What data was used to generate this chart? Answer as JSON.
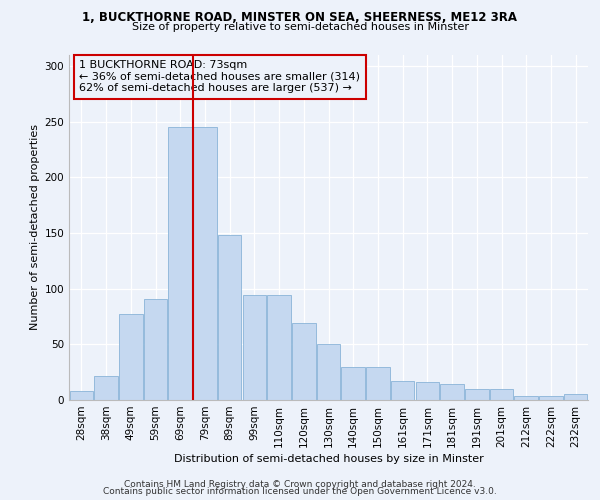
{
  "title1": "1, BUCKTHORNE ROAD, MINSTER ON SEA, SHEERNESS, ME12 3RA",
  "title2": "Size of property relative to semi-detached houses in Minster",
  "xlabel": "Distribution of semi-detached houses by size in Minster",
  "ylabel": "Number of semi-detached properties",
  "footer1": "Contains HM Land Registry data © Crown copyright and database right 2024.",
  "footer2": "Contains public sector information licensed under the Open Government Licence v3.0.",
  "annotation_line1": "1 BUCKTHORNE ROAD: 73sqm",
  "annotation_line2": "← 36% of semi-detached houses are smaller (314)",
  "annotation_line3": "62% of semi-detached houses are larger (537) →",
  "bar_categories": [
    "28sqm",
    "38sqm",
    "49sqm",
    "59sqm",
    "69sqm",
    "79sqm",
    "89sqm",
    "99sqm",
    "110sqm",
    "120sqm",
    "130sqm",
    "140sqm",
    "150sqm",
    "161sqm",
    "171sqm",
    "181sqm",
    "191sqm",
    "201sqm",
    "212sqm",
    "222sqm",
    "232sqm"
  ],
  "bar_values": [
    8,
    22,
    77,
    91,
    245,
    245,
    148,
    94,
    94,
    69,
    50,
    30,
    30,
    17,
    16,
    14,
    10,
    10,
    4,
    4,
    5
  ],
  "bar_color": "#c5d8f0",
  "bar_edge_color": "#8ab4d8",
  "vline_index": 4.5,
  "vline_color": "#cc0000",
  "annotation_box_color": "#cc0000",
  "background_color": "#edf2fa",
  "ylim": [
    0,
    310
  ],
  "yticks": [
    0,
    50,
    100,
    150,
    200,
    250,
    300
  ],
  "annotation_fontsize": 8.0,
  "title1_fontsize": 8.5,
  "title2_fontsize": 8.0,
  "axis_label_fontsize": 8.0,
  "tick_fontsize": 7.5,
  "footer_fontsize": 6.5
}
